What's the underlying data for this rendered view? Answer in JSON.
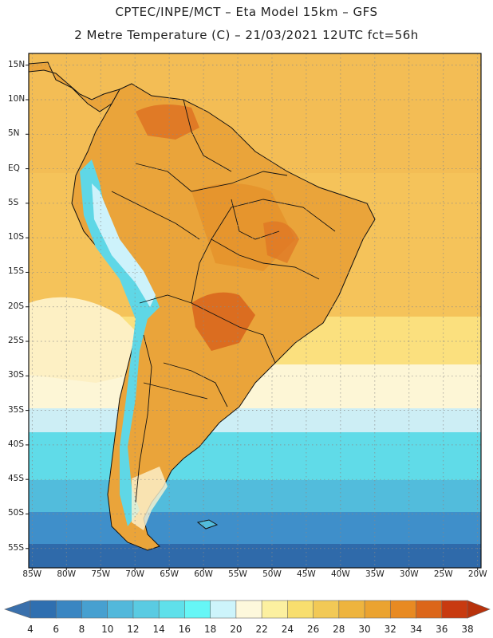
{
  "header": {
    "line1": "CPTEC/INPE/MCT –  Eta Model 15km – GFS",
    "line2": "2 Metre Temperature (C) – 21/03/2021 12UTC fct=56h"
  },
  "map": {
    "lat_labels": [
      "15N",
      "10N",
      "5N",
      "EQ",
      "5S",
      "10S",
      "15S",
      "20S",
      "25S",
      "30S",
      "35S",
      "40S",
      "45S",
      "50S",
      "55S"
    ],
    "lon_labels": [
      "85W",
      "80W",
      "75W",
      "70W",
      "65W",
      "60W",
      "55W",
      "50W",
      "45W",
      "40W",
      "35W",
      "30W",
      "25W",
      "20W"
    ],
    "lat_values": [
      15,
      10,
      5,
      0,
      -5,
      -10,
      -15,
      -20,
      -25,
      -30,
      -35,
      -40,
      -45,
      -50,
      -55
    ],
    "lon_values": [
      -85,
      -80,
      -75,
      -70,
      -65,
      -60,
      -55,
      -50,
      -45,
      -40,
      -35,
      -30,
      -25,
      -20
    ],
    "extent": {
      "lon_min": -85.5,
      "lon_max": -19.5,
      "lat_min": -57.8,
      "lat_max": 16.7
    }
  },
  "colorbar": {
    "labels": [
      "4",
      "6",
      "8",
      "10",
      "12",
      "14",
      "16",
      "18",
      "20",
      "22",
      "24",
      "26",
      "28",
      "30",
      "32",
      "34",
      "36",
      "38"
    ],
    "colors": [
      "#2f6fb0",
      "#3a86c2",
      "#47a0d0",
      "#52b8db",
      "#5acbe2",
      "#5fe0ea",
      "#66f6f6",
      "#cdf4fb",
      "#fdf8dc",
      "#fcf0a0",
      "#f8de6e",
      "#f2c956",
      "#eeb43e",
      "#eba330",
      "#e88a22",
      "#dc661a",
      "#c83a10"
    ],
    "under_color": "#3a70ac",
    "over_color": "#b8320c"
  }
}
